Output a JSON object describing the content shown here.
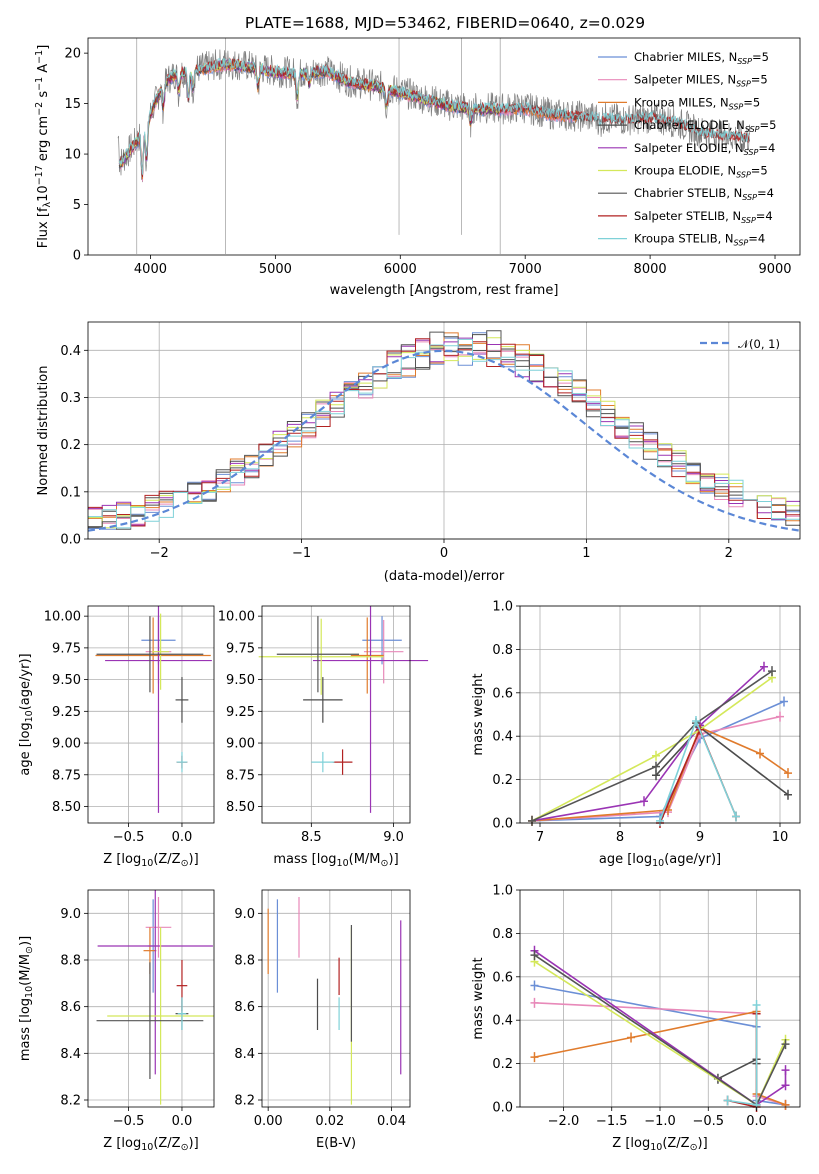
{
  "figure": {
    "title": "PLATE=1688, MJD=53462, FIBERID=0640, z=0.029"
  },
  "palette": {
    "Chabrier MILES": "#6b8fd6",
    "Salpeter MILES": "#e889b9",
    "Kroupa MILES": "#e07b2c",
    "Chabrier ELODIE": "#4c4c4c",
    "Salpeter ELODIE": "#9a34b4",
    "Kroupa ELODIE": "#d4e85a",
    "Chabrier STELIB": "#555555",
    "Salpeter STELIB": "#b22222",
    "Kroupa STELIB": "#7fd1d8",
    "normal": "#5b87d6"
  },
  "chart_data": [
    {
      "id": "spectrum",
      "type": "line",
      "xlabel": "wavelength [Angstrom, rest frame]",
      "ylabel": "Flux [f",
      "ylabel_sub": "λ",
      "ylabel_rest": "10",
      "ylabel_exp": "−17",
      "ylabel_tail": " erg cm",
      "ylabel_exp2": "−2",
      "ylabel_tail2": " s",
      "ylabel_exp3": "−1",
      "ylabel_tail3": " A",
      "ylabel_exp4": "−1",
      "ylabel_end": "]",
      "xlim": [
        3500,
        9200
      ],
      "ylim": [
        0,
        21.5
      ],
      "xticks": [
        4000,
        5000,
        6000,
        7000,
        8000,
        9000
      ],
      "yticks": [
        0,
        5,
        10,
        15,
        20
      ],
      "observed_range": [
        3740,
        8800
      ],
      "continuum": [
        [
          3750,
          9
        ],
        [
          3900,
          11.5
        ],
        [
          4000,
          14
        ],
        [
          4100,
          17
        ],
        [
          4200,
          18
        ],
        [
          4400,
          18.5
        ],
        [
          4600,
          19
        ],
        [
          4800,
          18.7
        ],
        [
          5000,
          18.2
        ],
        [
          5200,
          18.0
        ],
        [
          5400,
          18.3
        ],
        [
          5600,
          17.2
        ],
        [
          5800,
          16.8
        ],
        [
          6000,
          16.2
        ],
        [
          6200,
          15.5
        ],
        [
          6400,
          14.8
        ],
        [
          6600,
          14.6
        ],
        [
          6800,
          14.5
        ],
        [
          7000,
          14.6
        ],
        [
          7200,
          14.0
        ],
        [
          7400,
          13.8
        ],
        [
          7600,
          13.6
        ],
        [
          7800,
          13.4
        ],
        [
          8000,
          13.6
        ],
        [
          8200,
          13.2
        ],
        [
          8400,
          12.2
        ],
        [
          8600,
          11.8
        ],
        [
          8800,
          11.6
        ]
      ],
      "legend": [
        {
          "label": "Chabrier MILES, N",
          "sub": "SSP",
          "tail": "=5"
        },
        {
          "label": "Salpeter MILES, N",
          "sub": "SSP",
          "tail": "=5"
        },
        {
          "label": "Kroupa MILES, N",
          "sub": "SSP",
          "tail": "=5"
        },
        {
          "label": "Chabrier ELODIE, N",
          "sub": "SSP",
          "tail": "=5"
        },
        {
          "label": "Salpeter ELODIE, N",
          "sub": "SSP",
          "tail": "=4"
        },
        {
          "label": "Kroupa ELODIE, N",
          "sub": "SSP",
          "tail": "=5"
        },
        {
          "label": "Chabrier STELIB, N",
          "sub": "SSP",
          "tail": "=4"
        },
        {
          "label": "Salpeter STELIB, N",
          "sub": "SSP",
          "tail": "=4"
        },
        {
          "label": "Kroupa STELIB, N",
          "sub": "SSP",
          "tail": "=4"
        }
      ]
    },
    {
      "id": "residuals",
      "type": "histogram",
      "xlabel": "(data-model)/error",
      "ylabel": "Normed distribution",
      "xlim": [
        -2.5,
        2.5
      ],
      "ylim": [
        0,
        0.46
      ],
      "xticks": [
        -2,
        -1,
        0,
        1,
        2
      ],
      "yticks": [
        0.0,
        0.1,
        0.2,
        0.3,
        0.4
      ],
      "legend_label": "𝒩(0, 1)",
      "bin_width": 0.1,
      "bin_start": -2.5
    },
    {
      "id": "age-vs-Z",
      "type": "errorbar",
      "xlabel": "Z [log",
      "xlabel_sub": "10",
      "xlabel_tail": "(Z/Z",
      "xlabel_sub2": "⊙",
      "xlabel_end": ")]",
      "ylabel": "age  [log",
      "ylabel_sub": "10",
      "ylabel_tail": "(age/yr)]",
      "xlim": [
        -0.88,
        0.3
      ],
      "ylim": [
        8.37,
        10.08
      ],
      "xticks": [
        -0.5,
        0.0
      ],
      "yticks": [
        8.5,
        8.75,
        9.0,
        9.25,
        9.5,
        9.75,
        10.0
      ],
      "points": [
        {
          "x": -0.22,
          "y": 9.81,
          "xerr": 0.16,
          "yerr": 0.19,
          "series": "Chabrier MILES"
        },
        {
          "x": -0.22,
          "y": 9.72,
          "xerr": 0.12,
          "yerr": 0.25,
          "series": "Salpeter MILES"
        },
        {
          "x": -0.27,
          "y": 9.69,
          "xerr": 0.54,
          "yerr": 0.3,
          "series": "Kroupa MILES"
        },
        {
          "x": 0.0,
          "y": 9.34,
          "xerr": 0.06,
          "yerr": 0.18,
          "series": "Chabrier ELODIE"
        },
        {
          "x": -0.22,
          "y": 9.65,
          "xerr": 0.5,
          "yerr": 1.2,
          "series": "Salpeter ELODIE"
        },
        {
          "x": -0.2,
          "y": 9.72,
          "xerr": 0.08,
          "yerr": 0.3,
          "series": "Kroupa ELODIE"
        },
        {
          "x": -0.3,
          "y": 9.7,
          "xerr": 0.5,
          "yerr": 0.3,
          "series": "Chabrier STELIB"
        },
        {
          "x": 0.0,
          "y": 8.85,
          "xerr": 0.05,
          "yerr": 0.05,
          "series": "Salpeter STELIB"
        },
        {
          "x": 0.0,
          "y": 8.85,
          "xerr": 0.05,
          "yerr": 0.08,
          "series": "Kroupa STELIB"
        }
      ]
    },
    {
      "id": "age-vs-mass",
      "type": "errorbar",
      "xlabel": "mass [log",
      "xlabel_sub": "10",
      "xlabel_tail": "(M/M",
      "xlabel_sub2": "⊙",
      "xlabel_end": ")]",
      "xlim": [
        8.2,
        9.1
      ],
      "ylim": [
        8.37,
        10.08
      ],
      "xticks": [
        8.5,
        9.0
      ],
      "yticks": [
        8.5,
        8.75,
        9.0,
        9.25,
        9.5,
        9.75,
        10.0
      ],
      "points": [
        {
          "x": 8.93,
          "y": 9.81,
          "xerr": 0.12,
          "yerr": 0.19,
          "series": "Chabrier MILES"
        },
        {
          "x": 8.94,
          "y": 9.72,
          "xerr": 0.12,
          "yerr": 0.25,
          "series": "Salpeter MILES"
        },
        {
          "x": 8.84,
          "y": 9.69,
          "xerr": 0.1,
          "yerr": 0.3,
          "series": "Kroupa MILES"
        },
        {
          "x": 8.57,
          "y": 9.34,
          "xerr": 0.12,
          "yerr": 0.18,
          "series": "Chabrier ELODIE"
        },
        {
          "x": 8.86,
          "y": 9.65,
          "xerr": 0.35,
          "yerr": 1.2,
          "series": "Salpeter ELODIE"
        },
        {
          "x": 8.56,
          "y": 9.68,
          "xerr": 0.38,
          "yerr": 0.3,
          "series": "Kroupa ELODIE"
        },
        {
          "x": 8.54,
          "y": 9.7,
          "xerr": 0.25,
          "yerr": 0.3,
          "series": "Chabrier STELIB"
        },
        {
          "x": 8.69,
          "y": 8.85,
          "xerr": 0.06,
          "yerr": 0.1,
          "series": "Salpeter STELIB"
        },
        {
          "x": 8.57,
          "y": 8.85,
          "xerr": 0.07,
          "yerr": 0.08,
          "series": "Kroupa STELIB"
        }
      ]
    },
    {
      "id": "massweight-vs-age",
      "type": "line",
      "xlabel": "age  [log",
      "xlabel_sub": "10",
      "xlabel_tail": "(age/yr)]",
      "ylabel": "mass weight",
      "xlim": [
        6.75,
        10.25
      ],
      "ylim": [
        0,
        1.0
      ],
      "xticks": [
        7,
        8,
        9,
        10
      ],
      "yticks": [
        0.0,
        0.2,
        0.4,
        0.6,
        0.8,
        1.0
      ],
      "series": [
        {
          "name": "Chabrier MILES",
          "x": [
            6.9,
            8.5,
            9.0,
            10.05
          ],
          "y": [
            0.01,
            0.03,
            0.39,
            0.56
          ]
        },
        {
          "name": "Salpeter MILES",
          "x": [
            6.9,
            8.6,
            9.0,
            10.0
          ],
          "y": [
            0.01,
            0.05,
            0.41,
            0.49
          ]
        },
        {
          "name": "Kroupa MILES",
          "x": [
            6.9,
            8.6,
            9.0,
            9.75,
            10.1
          ],
          "y": [
            0.01,
            0.06,
            0.44,
            0.32,
            0.23
          ]
        },
        {
          "name": "Chabrier ELODIE",
          "x": [
            8.45,
            9.0,
            10.1
          ],
          "y": [
            0.22,
            0.44,
            0.13
          ]
        },
        {
          "name": "Salpeter ELODIE",
          "x": [
            6.9,
            8.3,
            9.0,
            9.8
          ],
          "y": [
            0.01,
            0.1,
            0.45,
            0.72
          ]
        },
        {
          "name": "Kroupa ELODIE",
          "x": [
            6.9,
            8.45,
            9.0,
            9.9
          ],
          "y": [
            0.01,
            0.31,
            0.43,
            0.67
          ]
        },
        {
          "name": "Chabrier STELIB",
          "x": [
            6.9,
            8.45,
            8.95,
            9.9
          ],
          "y": [
            0.01,
            0.26,
            0.46,
            0.7
          ]
        },
        {
          "name": "Salpeter STELIB",
          "x": [
            8.5,
            9.0,
            9.45
          ],
          "y": [
            0.0,
            0.43,
            0.03
          ]
        },
        {
          "name": "Kroupa STELIB",
          "x": [
            8.5,
            8.95,
            9.45
          ],
          "y": [
            0.01,
            0.47,
            0.03
          ]
        }
      ]
    },
    {
      "id": "mass-vs-Z",
      "type": "errorbar",
      "xlabel": "Z [log",
      "xlabel_sub": "10",
      "xlabel_tail": "(Z/Z",
      "xlabel_sub2": "⊙",
      "xlabel_end": ")]",
      "ylabel": "mass [log",
      "ylabel_sub": "10",
      "ylabel_tail": "(M/M",
      "ylabel_sub2": "⊙",
      "ylabel_end": ")]",
      "xlim": [
        -0.88,
        0.3
      ],
      "ylim": [
        8.17,
        9.1
      ],
      "xticks": [
        -0.5,
        0.0
      ],
      "yticks": [
        8.2,
        8.4,
        8.6,
        8.8,
        9.0
      ],
      "points": [
        {
          "x": -0.27,
          "y": 8.86,
          "xerr": 0.05,
          "yerr": 0.2,
          "series": "Chabrier MILES"
        },
        {
          "x": -0.22,
          "y": 8.94,
          "xerr": 0.12,
          "yerr": 0.13,
          "series": "Salpeter MILES"
        },
        {
          "x": -0.3,
          "y": 8.84,
          "xerr": 0.06,
          "yerr": 0.1,
          "series": "Kroupa MILES"
        },
        {
          "x": 0.0,
          "y": 8.57,
          "xerr": 0.06,
          "yerr": 0.07,
          "series": "Chabrier ELODIE"
        },
        {
          "x": -0.25,
          "y": 8.86,
          "xerr": 0.54,
          "yerr": 0.55,
          "series": "Salpeter ELODIE"
        },
        {
          "x": -0.2,
          "y": 8.56,
          "xerr": 0.5,
          "yerr": 0.38,
          "series": "Kroupa ELODIE"
        },
        {
          "x": -0.3,
          "y": 8.54,
          "xerr": 0.5,
          "yerr": 0.25,
          "series": "Chabrier STELIB"
        },
        {
          "x": 0.0,
          "y": 8.69,
          "xerr": 0.05,
          "yerr": 0.11,
          "series": "Salpeter STELIB"
        },
        {
          "x": 0.0,
          "y": 8.57,
          "xerr": 0.04,
          "yerr": 0.07,
          "series": "Kroupa STELIB"
        }
      ]
    },
    {
      "id": "mass-vs-ebv",
      "type": "errorbar",
      "xlabel": "E(B-V)",
      "xlim": [
        -0.002,
        0.046
      ],
      "ylim": [
        8.17,
        9.1
      ],
      "xticks": [
        0.0,
        0.02,
        0.04
      ],
      "yticks": [
        8.2,
        8.4,
        8.6,
        8.8,
        9.0
      ],
      "points": [
        {
          "x": 0.003,
          "y": 8.86,
          "xerr": 0.0,
          "yerr": 0.2,
          "series": "Chabrier MILES"
        },
        {
          "x": 0.01,
          "y": 8.94,
          "xerr": 0.0,
          "yerr": 0.13,
          "series": "Salpeter MILES"
        },
        {
          "x": 0.0,
          "y": 8.88,
          "xerr": 0.0,
          "yerr": 0.14,
          "series": "Kroupa MILES"
        },
        {
          "x": 0.016,
          "y": 8.61,
          "xerr": 0.0,
          "yerr": 0.11,
          "series": "Chabrier ELODIE"
        },
        {
          "x": 0.043,
          "y": 8.64,
          "xerr": 0.0,
          "yerr": 0.33,
          "series": "Salpeter ELODIE"
        },
        {
          "x": 0.027,
          "y": 8.56,
          "xerr": 0.0,
          "yerr": 0.38,
          "series": "Kroupa ELODIE"
        },
        {
          "x": 0.027,
          "y": 8.7,
          "xerr": 0.0,
          "yerr": 0.25,
          "series": "Chabrier STELIB"
        },
        {
          "x": 0.023,
          "y": 8.73,
          "xerr": 0.0,
          "yerr": 0.08,
          "series": "Salpeter STELIB"
        },
        {
          "x": 0.023,
          "y": 8.57,
          "xerr": 0.0,
          "yerr": 0.07,
          "series": "Kroupa STELIB"
        }
      ]
    },
    {
      "id": "massweight-vs-Z",
      "type": "line",
      "xlabel": "Z [log",
      "xlabel_sub": "10",
      "xlabel_tail": "(Z/Z",
      "xlabel_sub2": "⊙",
      "xlabel_end": ")]",
      "ylabel": "mass weight",
      "xlim": [
        -2.45,
        0.45
      ],
      "ylim": [
        0,
        1.0
      ],
      "xticks": [
        -2.0,
        -1.5,
        -1.0,
        -0.5,
        0.0
      ],
      "yticks": [
        0.0,
        0.2,
        0.4,
        0.6,
        0.8,
        1.0
      ],
      "series": [
        {
          "name": "Chabrier MILES",
          "x": [
            -2.3,
            0.0,
            0.0,
            0.3
          ],
          "y": [
            0.56,
            0.37,
            0.03,
            0.01
          ]
        },
        {
          "name": "Salpeter MILES",
          "x": [
            -2.3,
            0.0,
            0.0,
            0.3
          ],
          "y": [
            0.48,
            0.43,
            0.05,
            0.01
          ]
        },
        {
          "name": "Kroupa MILES",
          "x": [
            -2.3,
            -1.3,
            0.0,
            0.0,
            0.3
          ],
          "y": [
            0.23,
            0.32,
            0.44,
            0.06,
            0.01
          ]
        },
        {
          "name": "Chabrier ELODIE",
          "x": [
            -0.4,
            0.0,
            0.0
          ],
          "y": [
            0.13,
            0.22,
            0.2
          ]
        },
        {
          "name": "Salpeter ELODIE",
          "x": [
            -2.3,
            0.0,
            0.3,
            0.3
          ],
          "y": [
            0.72,
            0.01,
            0.1,
            0.17
          ]
        },
        {
          "name": "Kroupa ELODIE",
          "x": [
            -2.3,
            0.0,
            0.3
          ],
          "y": [
            0.67,
            0.01,
            0.31
          ]
        },
        {
          "name": "Chabrier STELIB",
          "x": [
            -2.3,
            0.0,
            0.3
          ],
          "y": [
            0.7,
            0.01,
            0.29
          ]
        },
        {
          "name": "Salpeter STELIB",
          "x": [
            -0.3,
            0.0,
            0.0
          ],
          "y": [
            0.03,
            0.0,
            0.43
          ]
        },
        {
          "name": "Kroupa STELIB",
          "x": [
            -0.3,
            0.0,
            0.0
          ],
          "y": [
            0.03,
            0.01,
            0.47
          ]
        }
      ]
    }
  ]
}
